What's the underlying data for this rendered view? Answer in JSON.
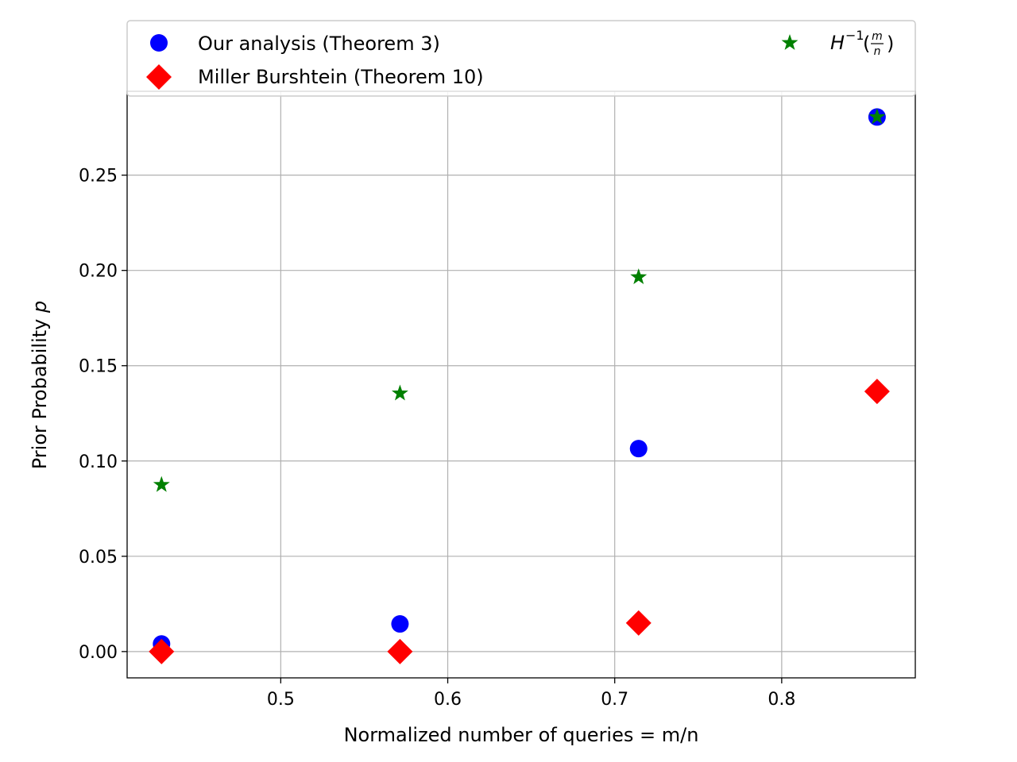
{
  "chart_data": {
    "type": "scatter",
    "xlabel": "Normalized number of queries = m/n",
    "ylabel": "Prior Probability",
    "ylabel_symbol": "p",
    "xlim": [
      0.408,
      0.88
    ],
    "ylim": [
      -0.0138,
      0.294
    ],
    "xticks": [
      0.5,
      0.6,
      0.7,
      0.8
    ],
    "xtick_labels": [
      "0.5",
      "0.6",
      "0.7",
      "0.8"
    ],
    "yticks": [
      0.0,
      0.05,
      0.1,
      0.15,
      0.2,
      0.25
    ],
    "ytick_labels": [
      "0.00",
      "0.05",
      "0.10",
      "0.15",
      "0.20",
      "0.25"
    ],
    "grid": true,
    "legend_position": "top",
    "x": [
      0.4286,
      0.5714,
      0.7143,
      0.8571
    ],
    "series": [
      {
        "name": "Our analysis (Theorem 3)",
        "marker": "circle",
        "color": "#0000ff",
        "values": [
          0.004,
          0.0145,
          0.1065,
          0.2805
        ]
      },
      {
        "name": "Miller Burshtein (Theorem 10)",
        "marker": "diamond",
        "color": "#ff0000",
        "values": [
          0.0,
          0.0,
          0.015,
          0.1365
        ]
      },
      {
        "name": "H^-1(m/n)",
        "marker": "star",
        "color": "#008000",
        "values": [
          0.0875,
          0.1355,
          0.1965,
          0.2805
        ],
        "legend_base": "H",
        "legend_sup": "−1",
        "legend_frac_num": "m",
        "legend_frac_den": "n"
      }
    ]
  }
}
